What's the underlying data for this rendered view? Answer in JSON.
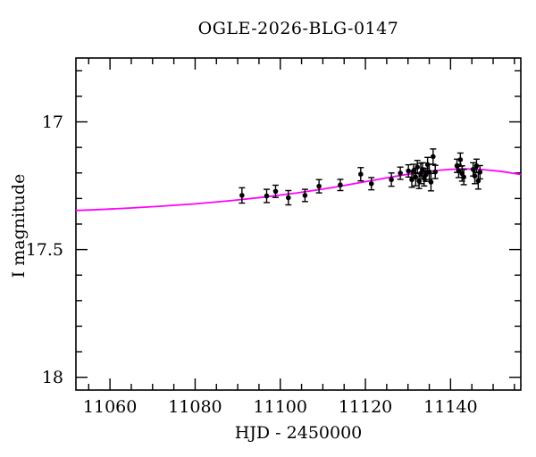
{
  "chart_data": {
    "type": "scatter",
    "title": "OGLE-2026-BLG-0147",
    "xlabel": "HJD - 2450000",
    "ylabel": "I magnitude",
    "xlim": [
      11052,
      11156.5
    ],
    "ylim": [
      18.05,
      16.75
    ],
    "y_axis_inverted": true,
    "grid": false,
    "legend": null,
    "x_ticks": [
      {
        "value": 11060,
        "label": "11060"
      },
      {
        "value": 11080,
        "label": "11080"
      },
      {
        "value": 11100,
        "label": "11100"
      },
      {
        "value": 11120,
        "label": "11120"
      },
      {
        "value": 11140,
        "label": "11140"
      }
    ],
    "x_minor_step": 5,
    "y_ticks": [
      {
        "value": 17,
        "label": "17"
      },
      {
        "value": 17.5,
        "label": "17.5"
      },
      {
        "value": 18,
        "label": "18"
      }
    ],
    "y_minor_step": 0.1,
    "data_points": {
      "marker": "filled-circle",
      "color": "#000000",
      "columns": [
        "hjd_minus_2450000",
        "i_magnitude",
        "error"
      ],
      "points": [
        [
          11091.0,
          17.288,
          0.03
        ],
        [
          11096.8,
          17.29,
          0.026
        ],
        [
          11098.9,
          17.272,
          0.024
        ],
        [
          11101.9,
          17.297,
          0.028
        ],
        [
          11105.8,
          17.288,
          0.024
        ],
        [
          11109.1,
          17.252,
          0.026
        ],
        [
          11114.1,
          17.247,
          0.022
        ],
        [
          11118.9,
          17.205,
          0.026
        ],
        [
          11121.4,
          17.242,
          0.024
        ],
        [
          11126.1,
          17.226,
          0.026
        ],
        [
          11128.2,
          17.201,
          0.024
        ],
        [
          11130.1,
          17.192,
          0.024
        ],
        [
          11130.9,
          17.226,
          0.03
        ],
        [
          11131.3,
          17.192,
          0.026
        ],
        [
          11131.8,
          17.216,
          0.034
        ],
        [
          11132.2,
          17.177,
          0.026
        ],
        [
          11132.6,
          17.231,
          0.03
        ],
        [
          11133.0,
          17.202,
          0.04
        ],
        [
          11133.4,
          17.186,
          0.026
        ],
        [
          11133.8,
          17.221,
          0.03
        ],
        [
          11134.2,
          17.207,
          0.026
        ],
        [
          11134.6,
          17.167,
          0.028
        ],
        [
          11135.0,
          17.196,
          0.03
        ],
        [
          11135.4,
          17.236,
          0.034
        ],
        [
          11135.9,
          17.136,
          0.03
        ],
        [
          11136.4,
          17.196,
          0.026
        ],
        [
          11141.5,
          17.172,
          0.026
        ],
        [
          11141.9,
          17.192,
          0.026
        ],
        [
          11142.3,
          17.148,
          0.026
        ],
        [
          11142.7,
          17.202,
          0.03
        ],
        [
          11143.1,
          17.216,
          0.03
        ],
        [
          11145.3,
          17.186,
          0.026
        ],
        [
          11145.7,
          17.212,
          0.03
        ],
        [
          11146.1,
          17.172,
          0.026
        ],
        [
          11146.5,
          17.231,
          0.032
        ],
        [
          11146.9,
          17.197,
          0.026
        ]
      ]
    },
    "model_curve": {
      "color": "#ff00ff",
      "points": [
        [
          11052,
          17.347
        ],
        [
          11058,
          17.343
        ],
        [
          11065,
          17.337
        ],
        [
          11072,
          17.33
        ],
        [
          11080,
          17.321
        ],
        [
          11088,
          17.309
        ],
        [
          11096,
          17.295
        ],
        [
          11104,
          17.278
        ],
        [
          11112,
          17.258
        ],
        [
          11119,
          17.237
        ],
        [
          11125,
          17.219
        ],
        [
          11130,
          17.205
        ],
        [
          11134,
          17.196
        ],
        [
          11137,
          17.19
        ],
        [
          11140,
          17.186
        ],
        [
          11143,
          17.184
        ],
        [
          11146,
          17.185
        ],
        [
          11149,
          17.189
        ],
        [
          11152,
          17.194
        ],
        [
          11156.5,
          17.206
        ]
      ]
    },
    "frame_color": "#000000",
    "background_color": "#ffffff"
  }
}
